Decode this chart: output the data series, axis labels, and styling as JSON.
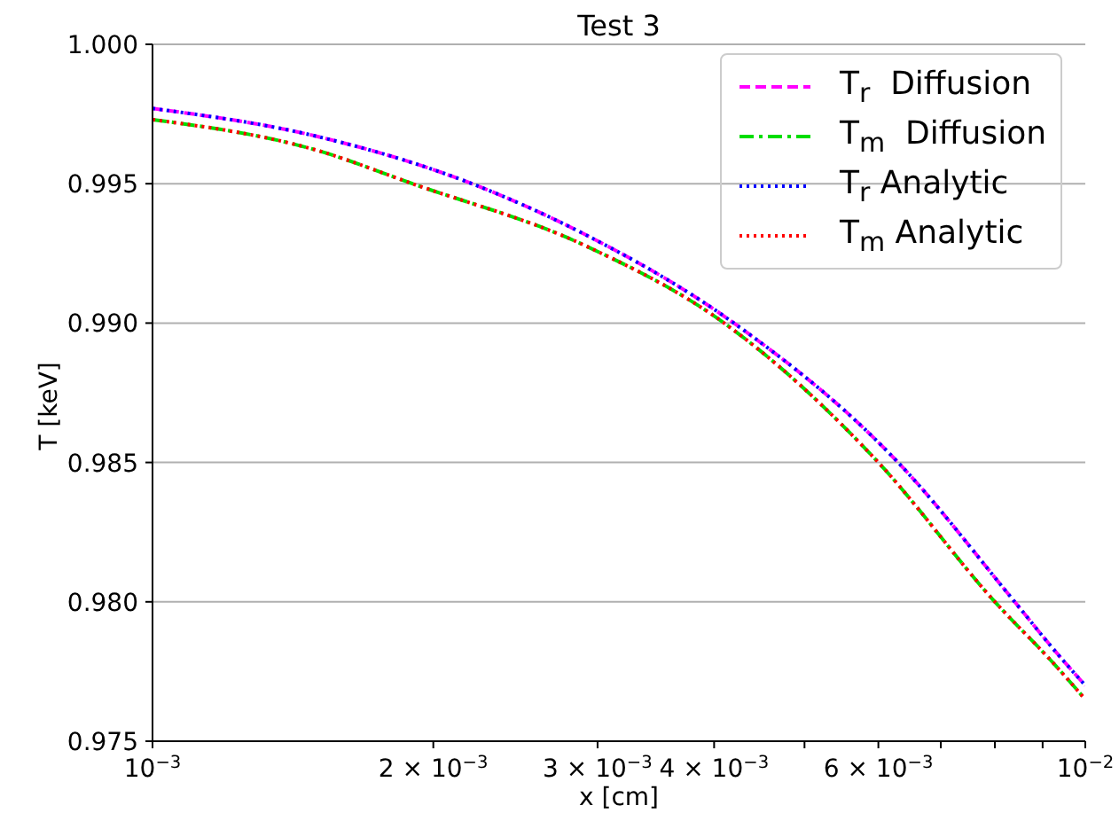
{
  "chart_data": {
    "type": "line",
    "title": "Test 3",
    "xlabel": "x [cm]",
    "ylabel": "T [keV]",
    "log": "x",
    "grid": "y",
    "legend": "top right",
    "xlim": [
      0.001,
      0.01
    ],
    "xticks": [
      {
        "value": 0.001,
        "label": "10$^{−3}$"
      },
      {
        "value": 0.002,
        "label": "2 × 10$^{−3}$"
      },
      {
        "value": 0.003,
        "label": "3 × 10$^{−3}$"
      },
      {
        "value": 0.004,
        "label": "4 × 10$^{−3}$"
      },
      {
        "value": 0.005,
        "label": null
      },
      {
        "value": 0.006,
        "label": "6 × 10$^{−3}$"
      },
      {
        "value": 0.007,
        "label": null
      },
      {
        "value": 0.008,
        "label": null
      },
      {
        "value": 0.009,
        "label": null
      },
      {
        "value": 0.01,
        "label": "10$^{−2}$"
      }
    ],
    "ylim": [
      0.975,
      1.0
    ],
    "yticks": [
      {
        "value": 0.975,
        "label": "0.975"
      },
      {
        "value": 0.98,
        "label": "0.980"
      },
      {
        "value": 0.985,
        "label": "0.985"
      },
      {
        "value": 0.99,
        "label": "0.990"
      },
      {
        "value": 0.995,
        "label": "0.995"
      },
      {
        "value": 1.0,
        "label": "1.000"
      }
    ],
    "series": [
      {
        "name": "T$_{r}$  Diffusion",
        "color": "#ff00ff",
        "line_style": "dashed",
        "x": [
          0.001,
          0.0015,
          0.0022,
          0.0029,
          0.0042,
          0.0063,
          0.0084,
          0.0093,
          0.01
        ],
        "values": [
          0.9977,
          0.9967,
          0.995,
          0.9932,
          0.99,
          0.985,
          0.98,
          0.9782,
          0.977
        ]
      },
      {
        "name": "T$_{m}$  Diffusion",
        "color": "#00dd00",
        "line_style": "dashdot",
        "x": [
          0.001,
          0.0015,
          0.0019,
          0.0029,
          0.0041,
          0.006,
          0.008,
          0.0093,
          0.01
        ],
        "values": [
          0.9973,
          0.9962,
          0.995,
          0.9928,
          0.99,
          0.985,
          0.98,
          0.9777,
          0.9765
        ]
      },
      {
        "name": "T$_{r}$ Analytic",
        "color": "#0000ff",
        "line_style": "dotted",
        "x": [
          0.001,
          0.0015,
          0.0022,
          0.0029,
          0.0042,
          0.0063,
          0.0084,
          0.0093,
          0.01
        ],
        "values": [
          0.9977,
          0.9967,
          0.995,
          0.9932,
          0.99,
          0.985,
          0.98,
          0.9782,
          0.977
        ]
      },
      {
        "name": "T$_{m}$ Analytic",
        "color": "#ff0000",
        "line_style": "dotted",
        "x": [
          0.001,
          0.0015,
          0.0019,
          0.0029,
          0.0041,
          0.006,
          0.008,
          0.0093,
          0.01
        ],
        "values": [
          0.9973,
          0.9962,
          0.995,
          0.9928,
          0.99,
          0.985,
          0.98,
          0.9777,
          0.9765
        ]
      }
    ]
  }
}
